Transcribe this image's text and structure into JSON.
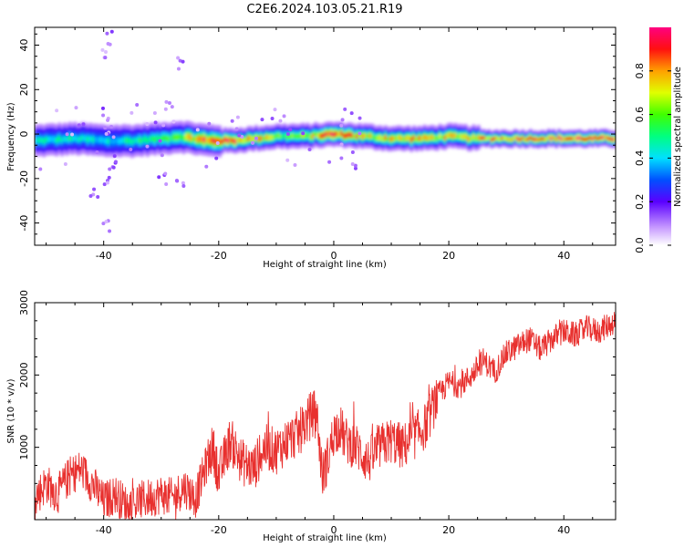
{
  "title": "C2E6.2024.103.05.21.R19",
  "chart_data": [
    {
      "type": "heatmap",
      "xlabel": "Height of straight line (km)",
      "ylabel": "Frequency (Hz)",
      "xlim": [
        -52,
        49
      ],
      "ylim": [
        -50,
        48
      ],
      "xticks": [
        -40,
        -20,
        0,
        20,
        40
      ],
      "yticks": [
        -40,
        -20,
        0,
        20,
        40
      ],
      "colorbar": {
        "label": "Normalized spectral amplitude",
        "range": [
          0,
          1
        ],
        "ticks": [
          0.0,
          0.2,
          0.4,
          0.6,
          0.8
        ]
      },
      "ridge": {
        "description_points_x": [
          -52,
          -45,
          -40,
          -35,
          -30,
          -27,
          -22,
          -18,
          -14,
          -10,
          -5,
          0,
          5,
          10,
          15,
          20,
          25,
          30,
          35,
          40,
          45,
          49
        ],
        "center_freq_hz": [
          -3,
          -2,
          -3,
          -3,
          -2,
          -1,
          -3,
          -3,
          -2,
          -1,
          -1,
          0,
          -1,
          -2,
          -2,
          -1,
          -2,
          -2,
          -2,
          -2,
          -2,
          -2
        ],
        "peak_amplitude": [
          0.45,
          0.5,
          0.45,
          0.5,
          0.55,
          0.6,
          0.95,
          0.95,
          0.8,
          0.65,
          0.7,
          0.95,
          0.75,
          0.8,
          0.8,
          0.75,
          0.85,
          0.9,
          0.95,
          0.95,
          0.95,
          0.95
        ]
      }
    },
    {
      "type": "line",
      "xlabel": "Height of straight line (km)",
      "ylabel": "SNR (10 * v/v)",
      "xlim": [
        -52,
        49
      ],
      "ylim": [
        0,
        3000
      ],
      "xticks": [
        -40,
        -20,
        0,
        20,
        40
      ],
      "yticks": [
        1000,
        2000,
        3000
      ],
      "color": "#e8302e",
      "series": [
        {
          "x": [
            -52,
            -50,
            -48,
            -46,
            -44,
            -42,
            -40,
            -38,
            -36,
            -34,
            -32,
            -30,
            -28,
            -26,
            -24,
            -22,
            -21,
            -20,
            -18,
            -16,
            -14,
            -12,
            -10,
            -8,
            -6,
            -4,
            -3,
            -2,
            -1,
            0,
            1,
            2,
            4,
            6,
            8,
            10,
            12,
            14,
            16,
            18,
            20,
            22,
            24,
            26,
            28,
            30,
            32,
            34,
            36,
            38,
            40,
            42,
            44,
            46,
            48,
            49
          ],
          "values": [
            300,
            500,
            350,
            600,
            700,
            500,
            250,
            350,
            200,
            250,
            300,
            350,
            300,
            450,
            300,
            800,
            1000,
            600,
            1100,
            800,
            700,
            1000,
            950,
            1100,
            1200,
            1450,
            1500,
            600,
            850,
            1200,
            1300,
            1100,
            1000,
            800,
            1000,
            1100,
            1000,
            1150,
            1300,
            1700,
            1900,
            1850,
            2000,
            2200,
            2050,
            2300,
            2400,
            2500,
            2350,
            2500,
            2600,
            2550,
            2650,
            2600,
            2700,
            2750
          ]
        }
      ]
    }
  ]
}
